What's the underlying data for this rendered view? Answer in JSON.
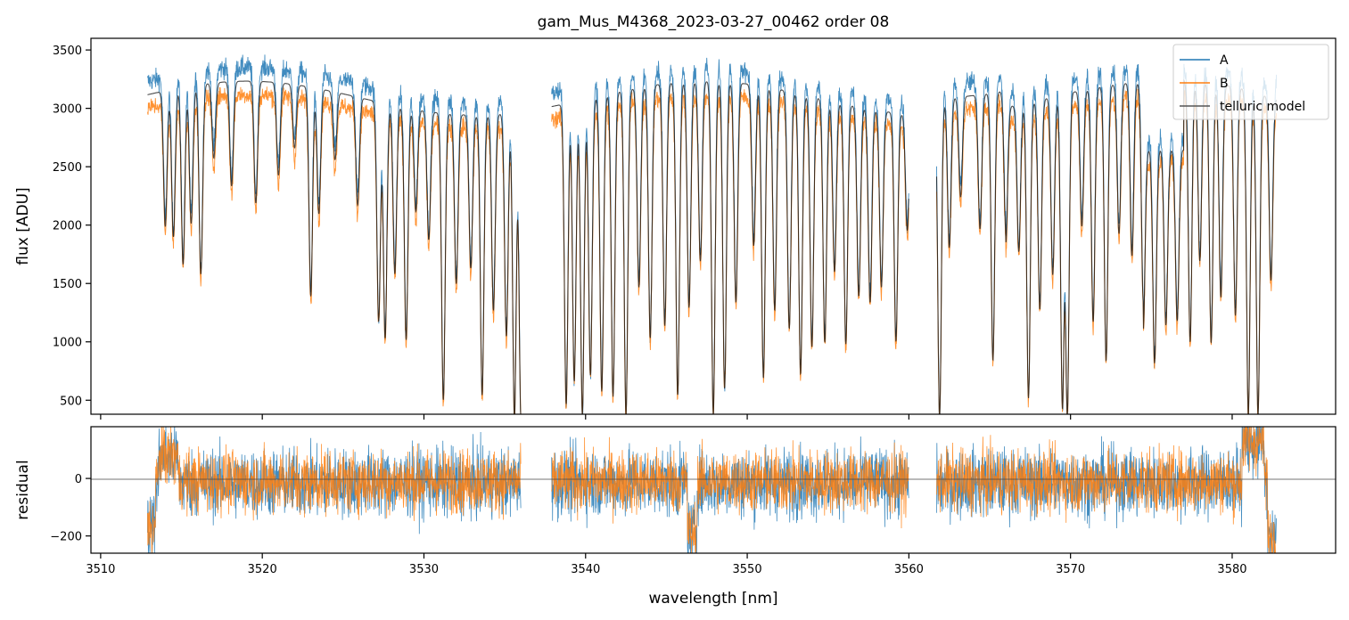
{
  "chart_data": [
    {
      "type": "line",
      "title": "gam_Mus_M4368_2023-03-27_00462  order 08",
      "xlabel": "",
      "ylabel": "flux [ADU]",
      "xlim": [
        3509.4,
        3586.4
      ],
      "ylim": [
        380,
        3600
      ],
      "yticks": [
        500,
        1000,
        1500,
        2000,
        2500,
        3000,
        3500
      ],
      "xticks": [
        3510,
        3520,
        3530,
        3540,
        3550,
        3560,
        3570,
        3580
      ],
      "legend_position": "top-right",
      "colors": {
        "A": "#1f77b4",
        "B": "#ff7f0e",
        "telluric": "#555555"
      },
      "series": [
        {
          "name": "A",
          "x_range": [
            3512.9,
            3582.7
          ],
          "gaps": [
            [
              3536.0,
              3537.9
            ],
            [
              3560.0,
              3561.7
            ]
          ],
          "continuum_A": 3200
        },
        {
          "name": "B",
          "x_range": [
            3512.8,
            3582.8
          ],
          "gaps": [
            [
              3536.0,
              3537.9
            ],
            [
              3560.0,
              3561.7
            ]
          ],
          "continuum_B": 2950
        },
        {
          "name": "telluric model",
          "x_range": [
            3512.9,
            3582.7
          ]
        }
      ],
      "absorption_lines": [
        {
          "x": 3514.0,
          "depth": 2050
        },
        {
          "x": 3514.5,
          "depth": 1950
        },
        {
          "x": 3515.1,
          "depth": 1700
        },
        {
          "x": 3515.6,
          "depth": 2050
        },
        {
          "x": 3516.2,
          "depth": 1600
        },
        {
          "x": 3517.0,
          "depth": 2600
        },
        {
          "x": 3518.1,
          "depth": 2350
        },
        {
          "x": 3519.6,
          "depth": 2200
        },
        {
          "x": 3521.0,
          "depth": 2450
        },
        {
          "x": 3522.0,
          "depth": 2700
        },
        {
          "x": 3523.0,
          "depth": 1420
        },
        {
          "x": 3523.5,
          "depth": 2150
        },
        {
          "x": 3524.5,
          "depth": 2650
        },
        {
          "x": 3525.9,
          "depth": 2280
        },
        {
          "x": 3527.2,
          "depth": 1250
        },
        {
          "x": 3527.6,
          "depth": 1100
        },
        {
          "x": 3528.2,
          "depth": 1700
        },
        {
          "x": 3528.9,
          "depth": 1100
        },
        {
          "x": 3529.5,
          "depth": 2300
        },
        {
          "x": 3530.3,
          "depth": 2050
        },
        {
          "x": 3531.2,
          "depth": 550
        },
        {
          "x": 3532.0,
          "depth": 1650
        },
        {
          "x": 3532.9,
          "depth": 1800
        },
        {
          "x": 3533.6,
          "depth": 600
        },
        {
          "x": 3534.3,
          "depth": 1400
        },
        {
          "x": 3535.1,
          "depth": 1150
        },
        {
          "x": 3535.6,
          "depth": 380
        },
        {
          "x": 3536.0,
          "depth": 380
        },
        {
          "x": 3538.8,
          "depth": 500
        },
        {
          "x": 3539.3,
          "depth": 700
        },
        {
          "x": 3539.8,
          "depth": 400
        },
        {
          "x": 3540.3,
          "depth": 750
        },
        {
          "x": 3541.0,
          "depth": 600
        },
        {
          "x": 3541.7,
          "depth": 550
        },
        {
          "x": 3542.5,
          "depth": 380
        },
        {
          "x": 3543.3,
          "depth": 1500
        },
        {
          "x": 3544.0,
          "depth": 1050
        },
        {
          "x": 3544.9,
          "depth": 1150
        },
        {
          "x": 3545.7,
          "depth": 550
        },
        {
          "x": 3546.4,
          "depth": 1300
        },
        {
          "x": 3547.1,
          "depth": 1700
        },
        {
          "x": 3547.9,
          "depth": 380
        },
        {
          "x": 3548.6,
          "depth": 600
        },
        {
          "x": 3549.3,
          "depth": 1350
        },
        {
          "x": 3550.4,
          "depth": 1850
        },
        {
          "x": 3551.0,
          "depth": 700
        },
        {
          "x": 3551.7,
          "depth": 1300
        },
        {
          "x": 3552.6,
          "depth": 1150
        },
        {
          "x": 3553.3,
          "depth": 750
        },
        {
          "x": 3554.0,
          "depth": 1000
        },
        {
          "x": 3554.8,
          "depth": 1050
        },
        {
          "x": 3555.4,
          "depth": 1700
        },
        {
          "x": 3556.1,
          "depth": 1050
        },
        {
          "x": 3556.9,
          "depth": 1500
        },
        {
          "x": 3557.6,
          "depth": 1450
        },
        {
          "x": 3558.3,
          "depth": 1600
        },
        {
          "x": 3559.2,
          "depth": 1100
        },
        {
          "x": 3559.9,
          "depth": 2150
        },
        {
          "x": 3561.9,
          "depth": 380
        },
        {
          "x": 3562.5,
          "depth": 1900
        },
        {
          "x": 3563.2,
          "depth": 2350
        },
        {
          "x": 3564.4,
          "depth": 2050
        },
        {
          "x": 3565.2,
          "depth": 870
        },
        {
          "x": 3566.0,
          "depth": 2000
        },
        {
          "x": 3566.8,
          "depth": 1900
        },
        {
          "x": 3567.4,
          "depth": 550
        },
        {
          "x": 3568.1,
          "depth": 1350
        },
        {
          "x": 3568.9,
          "depth": 1650
        },
        {
          "x": 3569.5,
          "depth": 450
        },
        {
          "x": 3569.8,
          "depth": 380
        },
        {
          "x": 3570.7,
          "depth": 2050
        },
        {
          "x": 3571.4,
          "depth": 1200
        },
        {
          "x": 3572.2,
          "depth": 850
        },
        {
          "x": 3573.0,
          "depth": 1950
        },
        {
          "x": 3573.8,
          "depth": 1750
        },
        {
          "x": 3574.5,
          "depth": 1350
        },
        {
          "x": 3575.2,
          "depth": 1000
        },
        {
          "x": 3575.9,
          "depth": 1400
        },
        {
          "x": 3576.6,
          "depth": 1450
        },
        {
          "x": 3577.4,
          "depth": 1000
        },
        {
          "x": 3578.0,
          "depth": 1700
        },
        {
          "x": 3578.7,
          "depth": 1000
        },
        {
          "x": 3579.3,
          "depth": 1400
        },
        {
          "x": 3580.2,
          "depth": 1250
        },
        {
          "x": 3581.0,
          "depth": 380
        },
        {
          "x": 3581.6,
          "depth": 380
        },
        {
          "x": 3582.4,
          "depth": 1600
        }
      ]
    },
    {
      "type": "line",
      "title": "",
      "xlabel": "wavelength [nm]",
      "ylabel": "residual",
      "xlim": [
        3509.4,
        3586.4
      ],
      "ylim": [
        -260,
        180
      ],
      "yticks": [
        -200,
        0
      ],
      "xticks": [
        3510,
        3520,
        3530,
        3540,
        3550,
        3560,
        3570,
        3580
      ],
      "xtick_labels": [
        "3510",
        "3520",
        "3530",
        "3540",
        "3550",
        "3560",
        "3570",
        "3580"
      ],
      "zero_line": 0,
      "series": [
        {
          "name": "A",
          "typical_scatter": 60
        },
        {
          "name": "B",
          "typical_scatter": 55
        }
      ]
    }
  ],
  "legend": {
    "items": [
      {
        "label": "A",
        "color": "#1f77b4"
      },
      {
        "label": "B",
        "color": "#ff7f0e"
      },
      {
        "label": "telluric model",
        "color": "#555555"
      }
    ]
  }
}
